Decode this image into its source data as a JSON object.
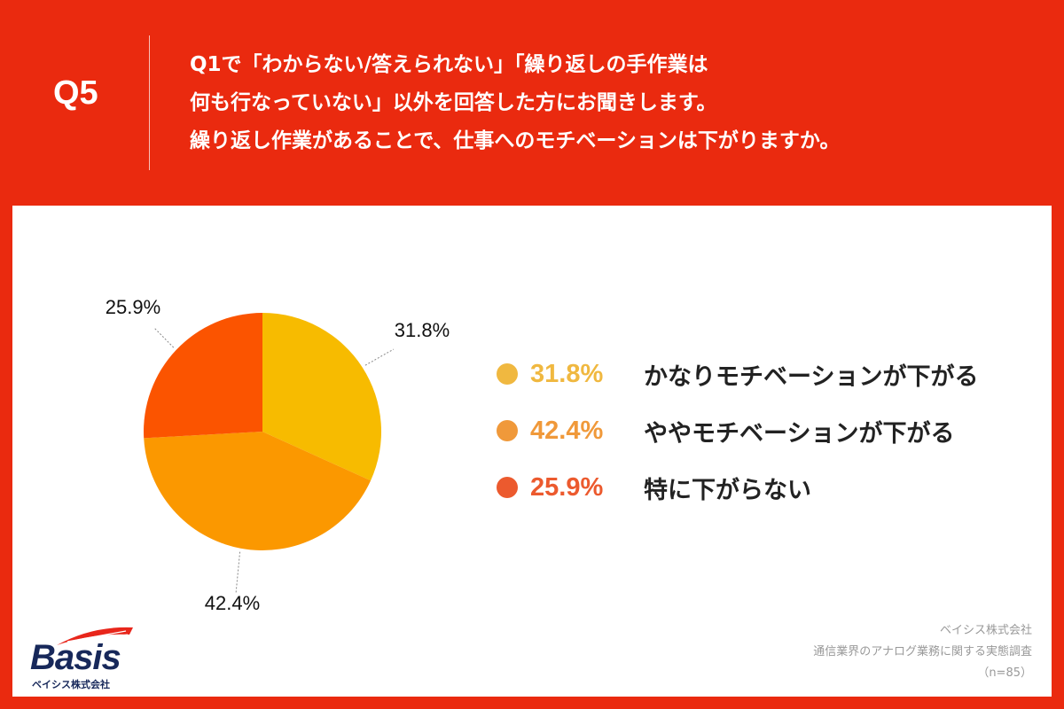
{
  "header": {
    "q_label": "Q5",
    "question_lines": [
      "Q1で「わからない/答えられない」「繰り返しの手作業は",
      "何も行なっていない」以外を回答した方にお聞きします。",
      "繰り返し作業があることで、仕事へのモチベーションは下がりますか。"
    ]
  },
  "colors": {
    "background": "#ea2a0f",
    "slice_1": "#f7bb00",
    "slice_2": "#fb9800",
    "slice_3": "#fb5400",
    "legend_1": "#f0b840",
    "legend_2": "#f0993a",
    "legend_3": "#ec5a2e"
  },
  "chart_data": {
    "type": "pie",
    "slices": [
      {
        "label": "かなりモチベーションが下がる",
        "value": 31.8,
        "value_label": "31.8%"
      },
      {
        "label": "ややモチベーションが下がる",
        "value": 42.4,
        "value_label": "42.4%"
      },
      {
        "label": "特に下がらない",
        "value": 25.9,
        "value_label": "25.9%"
      }
    ],
    "start": "12 o'clock",
    "direction": "clockwise",
    "legend_position": "right"
  },
  "logo": {
    "text": "Basis",
    "subtitle": "ベイシス株式会社"
  },
  "source": {
    "company": "ベイシス株式会社",
    "survey": "通信業界のアナログ業務に関する実態調査",
    "sample": "（n=85）"
  }
}
